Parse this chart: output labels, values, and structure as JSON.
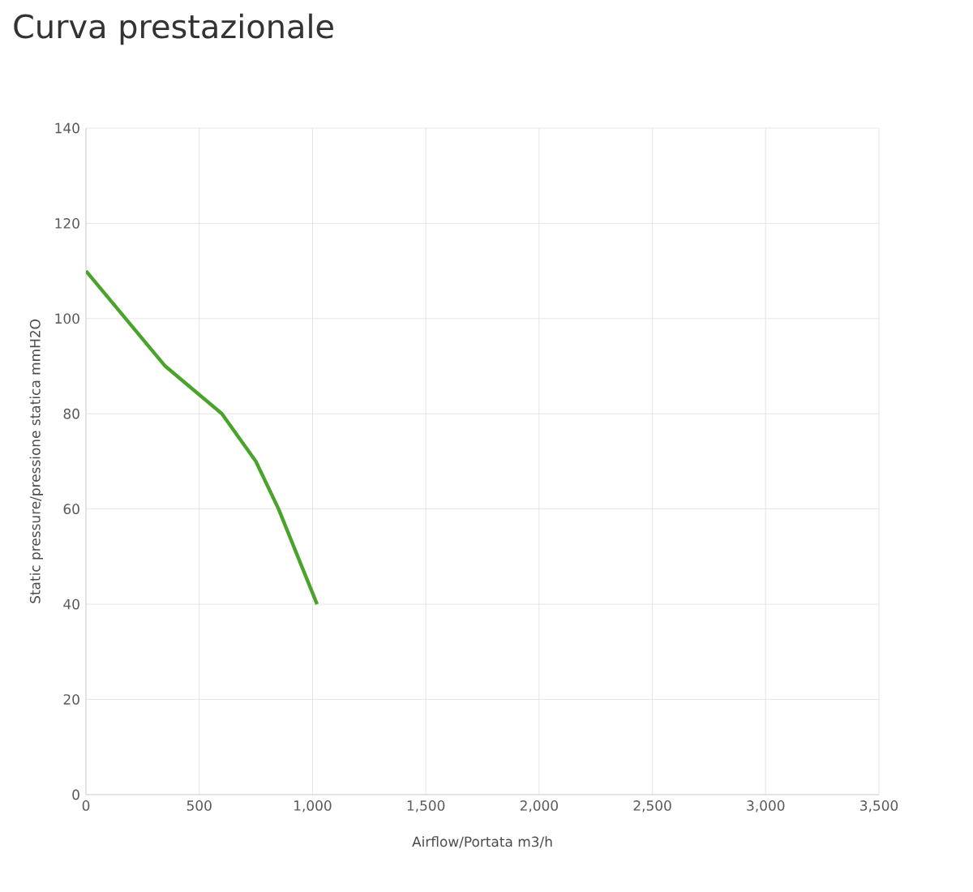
{
  "chart_data": {
    "type": "line",
    "title": "Curva prestazionale",
    "xlabel": "Airflow/Portata m3/h",
    "ylabel": "Static pressure/pressione statica mmH2O",
    "x": [
      0,
      350,
      600,
      750,
      850,
      1020
    ],
    "series": [
      {
        "color": "#4aa32a",
        "values": [
          110,
          90,
          80,
          70,
          60,
          40
        ]
      }
    ],
    "xlim": [
      0,
      3500
    ],
    "ylim": [
      0,
      140
    ],
    "xticks": [
      0,
      500,
      {
        "value": 1000,
        "label": "1,000"
      },
      {
        "value": 1500,
        "label": "1,500"
      },
      {
        "value": 2000,
        "label": "2,000"
      },
      {
        "value": 2500,
        "label": "2,500"
      },
      {
        "value": 3000,
        "label": "3,000"
      },
      {
        "value": 3500,
        "label": "3,500"
      }
    ],
    "yticks": [
      0,
      20,
      40,
      60,
      80,
      100,
      120,
      140
    ],
    "grid": true,
    "marker": "none",
    "line_style": "solid"
  }
}
